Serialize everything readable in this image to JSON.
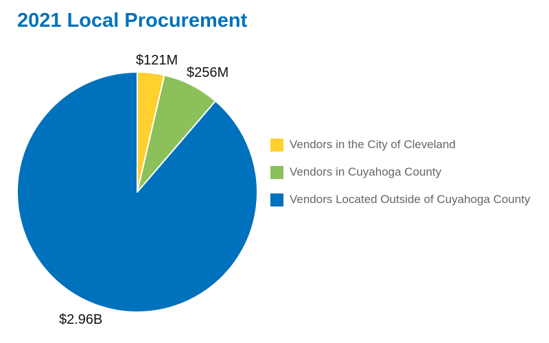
{
  "chart_data": {
    "type": "pie",
    "title": "2021 Local Procurement",
    "categories": [
      "Vendors in the City of Cleveland",
      "Vendors in Cuyahoga County",
      "Vendors Located Outside of Cuyahoga County"
    ],
    "values": [
      121,
      256,
      2960
    ],
    "units": "millions of dollars",
    "data_labels": [
      "$121M",
      "$256M",
      "$2.96B"
    ],
    "colors": [
      "#ffd02e",
      "#8bc05a",
      "#0071bc"
    ],
    "legend_placement": "right"
  }
}
